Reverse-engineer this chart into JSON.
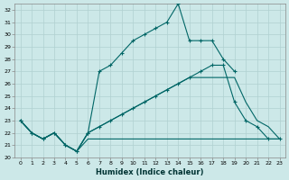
{
  "bg_color": "#cce8e8",
  "grid_color": "#b0d0d0",
  "line_color": "#006666",
  "xlabel": "Humidex (Indice chaleur)",
  "xlim": [
    -0.5,
    23.5
  ],
  "ylim": [
    20,
    32.5
  ],
  "yticks": [
    20,
    21,
    22,
    23,
    24,
    25,
    26,
    27,
    28,
    29,
    30,
    31,
    32
  ],
  "xticks": [
    0,
    1,
    2,
    3,
    4,
    5,
    6,
    7,
    8,
    9,
    10,
    11,
    12,
    13,
    14,
    15,
    16,
    17,
    18,
    19,
    20,
    21,
    22,
    23
  ],
  "line1_x": [
    0,
    1,
    2,
    3,
    4,
    5,
    6,
    7,
    8,
    9,
    10,
    11,
    12,
    13,
    14,
    15,
    16,
    17,
    18,
    19
  ],
  "line1_y": [
    23.0,
    22.0,
    21.5,
    22.0,
    21.0,
    20.5,
    22.0,
    27.0,
    27.5,
    28.5,
    29.5,
    30.0,
    30.5,
    31.0,
    32.5,
    29.5,
    29.5,
    29.5,
    28.0,
    27.0
  ],
  "line2_x": [
    0,
    1,
    2,
    3,
    4,
    5,
    6,
    7,
    8,
    9,
    10,
    11,
    12,
    13,
    14,
    15,
    16,
    17,
    18,
    19,
    20,
    21,
    22,
    23
  ],
  "line2_y": [
    23.0,
    22.0,
    21.5,
    22.0,
    21.0,
    20.5,
    22.0,
    22.5,
    23.0,
    23.5,
    24.0,
    24.5,
    25.0,
    25.5,
    26.0,
    26.5,
    27.0,
    27.5,
    27.5,
    24.5,
    23.0,
    22.5,
    21.5,
    21.5
  ],
  "line3_x": [
    0,
    1,
    2,
    3,
    4,
    5,
    6,
    7,
    8,
    9,
    10,
    11,
    12,
    13,
    14,
    15,
    16,
    17,
    18,
    19,
    20,
    21,
    22,
    23
  ],
  "line3_y": [
    23.0,
    22.0,
    21.5,
    22.0,
    21.0,
    20.5,
    21.5,
    21.5,
    21.5,
    21.5,
    21.5,
    21.5,
    21.5,
    21.5,
    21.5,
    21.5,
    21.5,
    21.5,
    21.5,
    21.5,
    21.5,
    21.5,
    21.5,
    21.5
  ],
  "line4_x": [
    0,
    1,
    2,
    3,
    4,
    5,
    6,
    7,
    8,
    9,
    10,
    11,
    12,
    13,
    14,
    15,
    16,
    17,
    18,
    19,
    20,
    21,
    22,
    23
  ],
  "line4_y": [
    23.0,
    22.0,
    21.5,
    22.0,
    21.0,
    20.5,
    22.0,
    22.5,
    23.0,
    23.5,
    24.0,
    24.5,
    25.0,
    25.5,
    26.0,
    26.5,
    26.5,
    26.5,
    26.5,
    26.5,
    24.5,
    23.0,
    22.5,
    21.5
  ]
}
